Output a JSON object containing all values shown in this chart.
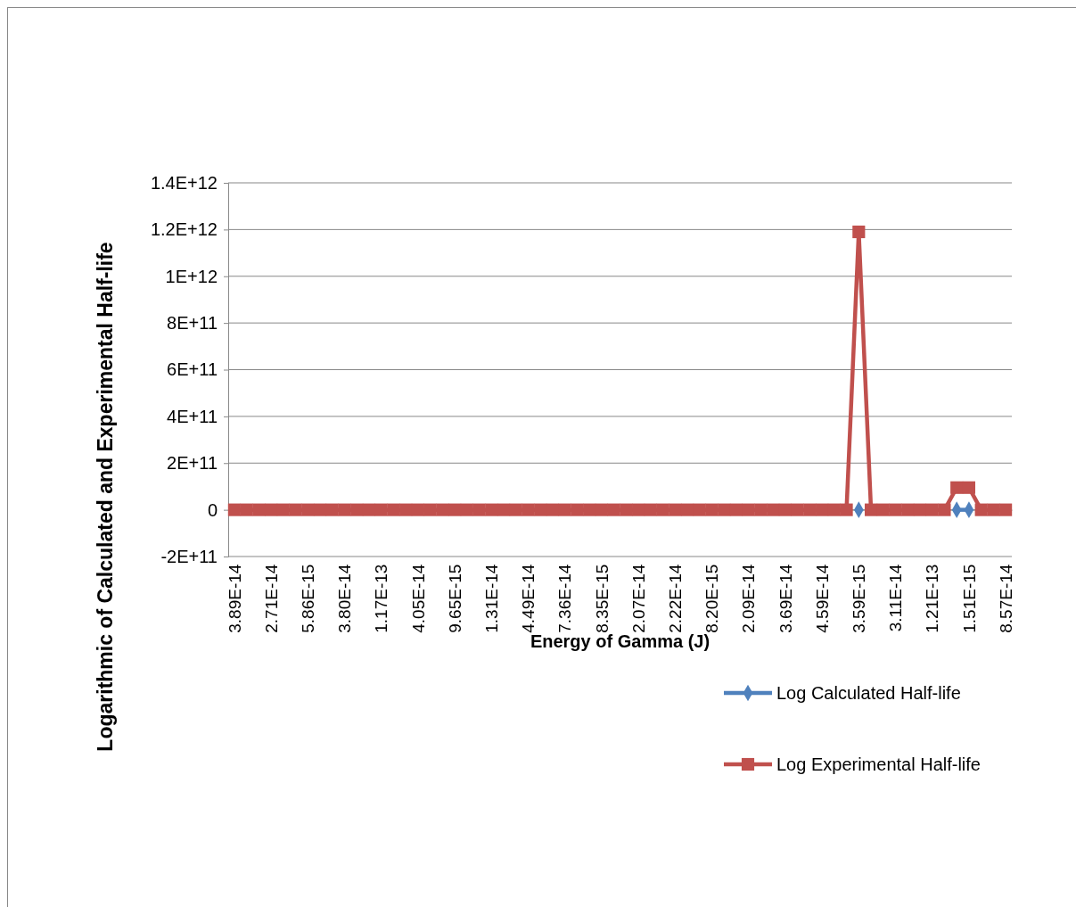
{
  "chart_data": {
    "type": "line",
    "xlabel": "Energy of Gamma (J)",
    "ylabel": "Logarithmic of Calculated and Experimental Half-life",
    "categories": [
      "3.89E-14",
      null,
      null,
      "2.71E-14",
      null,
      null,
      "5.86E-15",
      null,
      null,
      "3.80E-14",
      null,
      null,
      "1.17E-13",
      null,
      null,
      "4.05E-14",
      null,
      null,
      "9.65E-15",
      null,
      null,
      "1.31E-14",
      null,
      null,
      "4.49E-14",
      null,
      null,
      "7.36E-14",
      null,
      null,
      "8.35E-15",
      null,
      null,
      "2.07E-14",
      null,
      null,
      "2.22E-14",
      null,
      null,
      "8.20E-15",
      null,
      null,
      "2.09E-14",
      null,
      null,
      "3.69E-14",
      null,
      null,
      "4.59E-14",
      null,
      null,
      "3.59E-15",
      null,
      null,
      "3.11E-14",
      null,
      null,
      "1.21E-13",
      null,
      null,
      "1.51E-15",
      null,
      null,
      "8.57E-14"
    ],
    "series": [
      {
        "name": "Log Calculated Half-life",
        "color": "#4f81bd",
        "marker": "diamond",
        "values": [
          null,
          null,
          null,
          null,
          null,
          null,
          null,
          null,
          null,
          null,
          null,
          null,
          null,
          null,
          null,
          null,
          null,
          null,
          null,
          null,
          null,
          null,
          null,
          null,
          null,
          null,
          null,
          null,
          null,
          null,
          null,
          null,
          null,
          null,
          null,
          null,
          null,
          null,
          null,
          null,
          null,
          null,
          null,
          null,
          null,
          null,
          null,
          null,
          null,
          null,
          null,
          0,
          null,
          null,
          null,
          null,
          null,
          null,
          null,
          0,
          0,
          null,
          null,
          null
        ]
      },
      {
        "name": "Log Experimental Half-life",
        "color": "#c0504d",
        "marker": "square",
        "values": [
          0,
          0,
          0,
          0,
          0,
          0,
          0,
          0,
          0,
          0,
          0,
          0,
          0,
          0,
          0,
          0,
          0,
          0,
          0,
          0,
          0,
          0,
          0,
          0,
          0,
          0,
          0,
          0,
          0,
          0,
          0,
          0,
          0,
          0,
          0,
          0,
          0,
          0,
          0,
          0,
          0,
          0,
          0,
          0,
          0,
          0,
          0,
          0,
          0,
          0,
          0,
          1190000000000.0,
          0,
          0,
          0,
          0,
          0,
          0,
          0,
          95000000000.0,
          95000000000.0,
          0,
          0,
          0
        ]
      }
    ],
    "ylim": [
      -200000000000.0,
      1400000000000.0
    ],
    "yticks": [
      {
        "value": -200000000000.0,
        "label": "-2E+11"
      },
      0,
      {
        "value": 200000000000.0,
        "label": "2E+11"
      },
      {
        "value": 400000000000.0,
        "label": "4E+11"
      },
      {
        "value": 600000000000.0,
        "label": "6E+11"
      },
      {
        "value": 800000000000.0,
        "label": "8E+11"
      },
      {
        "value": 1000000000000.0,
        "label": "1E+12"
      },
      {
        "value": 1200000000000.0,
        "label": "1.2E+12"
      },
      {
        "value": 1400000000000.0,
        "label": "1.4E+12"
      }
    ],
    "grid": "y",
    "legend": "bottom right"
  }
}
